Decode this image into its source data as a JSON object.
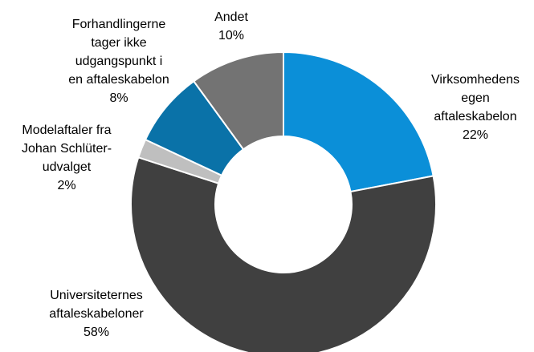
{
  "chart_data": {
    "type": "donut",
    "categories": [
      [
        "Virksomhedens",
        "egen",
        "aftaleskabelon"
      ],
      [
        "Universiteternes",
        "aftaleskabeloner"
      ],
      [
        "Modelaftaler fra",
        "Johan Schlüter-",
        "udvalget"
      ],
      [
        "Forhandlingerne",
        "tager ikke",
        "udgangspunkt i",
        "en aftaleskabelon"
      ],
      [
        "Andet"
      ]
    ],
    "values": [
      22,
      58,
      2,
      8,
      10
    ],
    "value_labels": [
      "22%",
      "58%",
      "2%",
      "8%",
      "10%"
    ],
    "colors": [
      "#0b8fd8",
      "#404040",
      "#bfbfbf",
      "#0a72a8",
      "#737373"
    ]
  }
}
